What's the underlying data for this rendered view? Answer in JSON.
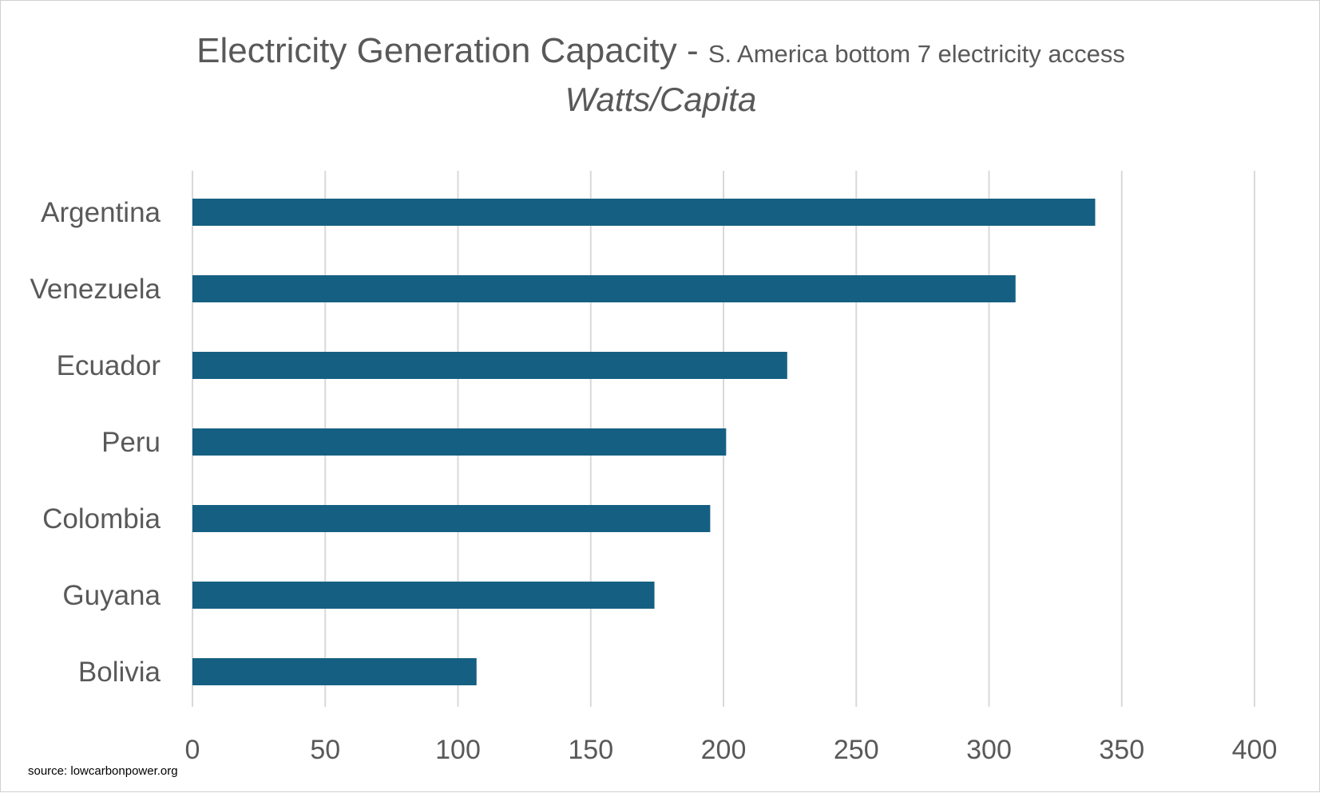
{
  "chart_data": {
    "type": "bar",
    "orientation": "horizontal",
    "title": "Electricity Generation Capacity - ",
    "title_suffix": "S. America bottom 7 electricity access",
    "subtitle": "Watts/Capita",
    "categories": [
      "Argentina",
      "Venezuela",
      "Ecuador",
      "Peru",
      "Colombia",
      "Guyana",
      "Bolivia"
    ],
    "values": [
      340,
      310,
      224,
      201,
      195,
      174,
      107
    ],
    "xlim": [
      0,
      400
    ],
    "xticks": [
      "0",
      "50",
      "100",
      "150",
      "200",
      "250",
      "300",
      "350",
      "400"
    ],
    "grid": true,
    "legend": "none",
    "bar_color": "#156082"
  },
  "source": "source: lowcarbonpower.org"
}
